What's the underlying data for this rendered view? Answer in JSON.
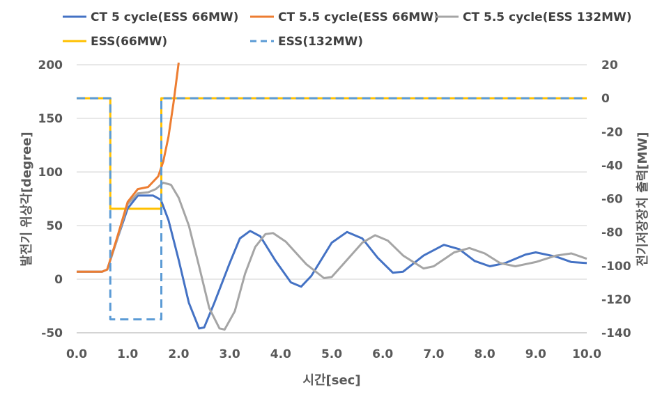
{
  "chart_data": {
    "type": "line",
    "xlabel": "시간[sec]",
    "ylabel_left": "발전기 위상각[degree]",
    "ylabel_right": "전기저장장치 출력[MW]",
    "xlim": [
      0,
      10
    ],
    "ylim_left": [
      -50,
      200
    ],
    "ylim_right": [
      -140,
      20
    ],
    "x_ticks": [
      "0.0",
      "1.0",
      "2.0",
      "3.0",
      "4.0",
      "5.0",
      "6.0",
      "7.0",
      "8.0",
      "9.0",
      "10.0"
    ],
    "y_left_ticks": [
      "-50",
      "0",
      "50",
      "100",
      "150",
      "200"
    ],
    "y_right_ticks": [
      "-140",
      "-120",
      "-100",
      "-80",
      "-60",
      "-40",
      "-20",
      "0",
      "20"
    ],
    "grid": true,
    "legend_position": "top",
    "series": [
      {
        "name": "CT 5 cycle(ESS 66MW)",
        "axis": "left",
        "color": "#4472C4",
        "dash": "solid",
        "points": [
          [
            0,
            7
          ],
          [
            0.5,
            7
          ],
          [
            0.6,
            9
          ],
          [
            0.8,
            38
          ],
          [
            1.0,
            66
          ],
          [
            1.2,
            78
          ],
          [
            1.5,
            78
          ],
          [
            1.65,
            74
          ],
          [
            1.8,
            55
          ],
          [
            2.0,
            18
          ],
          [
            2.2,
            -22
          ],
          [
            2.4,
            -46
          ],
          [
            2.5,
            -45
          ],
          [
            2.7,
            -22
          ],
          [
            3.0,
            15
          ],
          [
            3.2,
            38
          ],
          [
            3.4,
            45
          ],
          [
            3.6,
            40
          ],
          [
            3.9,
            17
          ],
          [
            4.2,
            -3
          ],
          [
            4.4,
            -7
          ],
          [
            4.6,
            3
          ],
          [
            5.0,
            34
          ],
          [
            5.3,
            44
          ],
          [
            5.6,
            38
          ],
          [
            5.9,
            20
          ],
          [
            6.2,
            6
          ],
          [
            6.4,
            7
          ],
          [
            6.8,
            22
          ],
          [
            7.2,
            32
          ],
          [
            7.5,
            28
          ],
          [
            7.8,
            17
          ],
          [
            8.1,
            12
          ],
          [
            8.4,
            15
          ],
          [
            8.8,
            23
          ],
          [
            9.0,
            25
          ],
          [
            9.4,
            21
          ],
          [
            9.7,
            16
          ],
          [
            10.0,
            15
          ]
        ]
      },
      {
        "name": "CT 5.5 cycle(ESS 66MW)",
        "axis": "left",
        "color": "#ED7D31",
        "dash": "solid",
        "points": [
          [
            0,
            7
          ],
          [
            0.5,
            7
          ],
          [
            0.6,
            9
          ],
          [
            0.8,
            40
          ],
          [
            1.0,
            72
          ],
          [
            1.2,
            84
          ],
          [
            1.4,
            86
          ],
          [
            1.6,
            96
          ],
          [
            1.7,
            110
          ],
          [
            1.8,
            133
          ],
          [
            1.9,
            165
          ],
          [
            2.0,
            202
          ]
        ]
      },
      {
        "name": "CT 5.5 cycle(ESS 132MW)",
        "axis": "left",
        "color": "#A5A5A5",
        "dash": "solid",
        "points": [
          [
            0,
            7
          ],
          [
            0.5,
            7
          ],
          [
            0.6,
            9
          ],
          [
            0.8,
            38
          ],
          [
            1.0,
            70
          ],
          [
            1.2,
            80
          ],
          [
            1.4,
            81
          ],
          [
            1.55,
            84
          ],
          [
            1.7,
            90
          ],
          [
            1.85,
            88
          ],
          [
            2.0,
            76
          ],
          [
            2.2,
            50
          ],
          [
            2.4,
            12
          ],
          [
            2.6,
            -27
          ],
          [
            2.8,
            -46
          ],
          [
            2.9,
            -47
          ],
          [
            3.1,
            -30
          ],
          [
            3.3,
            5
          ],
          [
            3.5,
            30
          ],
          [
            3.7,
            42
          ],
          [
            3.85,
            43
          ],
          [
            4.1,
            35
          ],
          [
            4.5,
            14
          ],
          [
            4.85,
            1
          ],
          [
            5.0,
            2
          ],
          [
            5.3,
            18
          ],
          [
            5.6,
            34
          ],
          [
            5.85,
            41
          ],
          [
            6.1,
            36
          ],
          [
            6.4,
            22
          ],
          [
            6.8,
            10
          ],
          [
            7.0,
            12
          ],
          [
            7.4,
            25
          ],
          [
            7.7,
            29
          ],
          [
            8.0,
            24
          ],
          [
            8.3,
            15
          ],
          [
            8.6,
            12
          ],
          [
            9.0,
            16
          ],
          [
            9.4,
            22
          ],
          [
            9.7,
            24
          ],
          [
            10.0,
            19
          ]
        ]
      },
      {
        "name": "ESS(66MW)",
        "axis": "right",
        "color": "#FFC000",
        "dash": "solid",
        "points": [
          [
            0,
            0
          ],
          [
            0.66,
            0
          ],
          [
            0.66,
            -66
          ],
          [
            1.66,
            -66
          ],
          [
            1.66,
            0
          ],
          [
            10,
            0
          ]
        ]
      },
      {
        "name": "ESS(132MW)",
        "axis": "right",
        "color": "#5B9BD5",
        "dash": "dashed",
        "points": [
          [
            0,
            0
          ],
          [
            0.66,
            0
          ],
          [
            0.66,
            -132
          ],
          [
            1.66,
            -132
          ],
          [
            1.66,
            0
          ],
          [
            10,
            0
          ]
        ]
      }
    ]
  }
}
